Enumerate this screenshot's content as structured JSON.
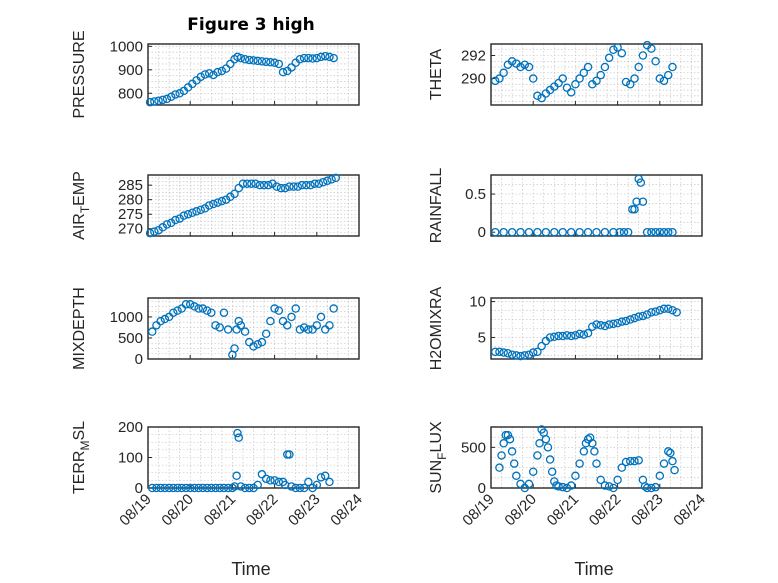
{
  "title": "Figure 3 high",
  "colors": {
    "marker": "#0072bd",
    "axis": "#262626",
    "grid": "#bdbdbd"
  },
  "time_ticks": [
    "08/19",
    "08/20",
    "08/21",
    "08/22",
    "08/23",
    "08/24"
  ],
  "xlabel": "Time",
  "chart_data": [
    {
      "type": "scatter",
      "ylabel": "PRESSURE",
      "ylabel_sub": "",
      "ylabel_rest": "",
      "xlim": [
        0,
        5
      ],
      "ylim": [
        750,
        1010
      ],
      "yticks": [
        800,
        900,
        1000
      ],
      "ytick_labels": [
        "800",
        "900",
        "1000"
      ],
      "grid": true,
      "x": [
        0.05,
        0.15,
        0.25,
        0.35,
        0.45,
        0.55,
        0.65,
        0.75,
        0.85,
        0.95,
        1.05,
        1.15,
        1.25,
        1.35,
        1.45,
        1.55,
        1.65,
        1.75,
        1.85,
        1.95,
        2.05,
        2.12,
        2.2,
        2.3,
        2.4,
        2.5,
        2.6,
        2.7,
        2.8,
        2.9,
        3.0,
        3.1,
        3.2,
        3.3,
        3.4,
        3.5,
        3.6,
        3.7,
        3.8,
        3.9,
        4.0,
        4.1,
        4.2,
        4.3,
        4.4
      ],
      "y": [
        762,
        765,
        768,
        772,
        776,
        785,
        795,
        800,
        810,
        825,
        840,
        855,
        870,
        880,
        885,
        878,
        890,
        895,
        905,
        925,
        945,
        955,
        950,
        945,
        942,
        940,
        938,
        936,
        934,
        932,
        930,
        925,
        890,
        895,
        910,
        930,
        945,
        950,
        950,
        948,
        950,
        955,
        958,
        955,
        950
      ]
    },
    {
      "type": "scatter",
      "ylabel": "THETA",
      "ylabel_sub": "",
      "ylabel_rest": "",
      "xlim": [
        0,
        5
      ],
      "ylim": [
        287.7,
        293.0
      ],
      "yticks": [
        290,
        292
      ],
      "ytick_labels": [
        "290",
        "292"
      ],
      "grid": true,
      "x": [
        0.1,
        0.2,
        0.3,
        0.4,
        0.5,
        0.6,
        0.7,
        0.8,
        0.9,
        1.0,
        1.1,
        1.2,
        1.3,
        1.4,
        1.5,
        1.6,
        1.7,
        1.8,
        1.9,
        2.0,
        2.1,
        2.2,
        2.3,
        2.4,
        2.5,
        2.6,
        2.7,
        2.8,
        2.9,
        3.0,
        3.1,
        3.2,
        3.3,
        3.4,
        3.5,
        3.6,
        3.7,
        3.8,
        3.9,
        4.0,
        4.1,
        4.2,
        4.3
      ],
      "y": [
        289.8,
        290.0,
        290.5,
        291.2,
        291.5,
        291.3,
        291.0,
        291.2,
        291.0,
        290.0,
        288.5,
        288.3,
        288.7,
        289.0,
        289.3,
        289.6,
        290.0,
        289.2,
        288.8,
        289.5,
        290.0,
        290.5,
        291.0,
        289.5,
        289.8,
        290.3,
        291.0,
        291.8,
        292.5,
        292.7,
        292.2,
        289.7,
        289.5,
        290.0,
        291.0,
        292.0,
        292.9,
        292.6,
        291.5,
        290.0,
        289.8,
        290.3,
        291.0
      ]
    },
    {
      "type": "scatter",
      "ylabel": "AIR",
      "ylabel_sub": "T",
      "ylabel_rest": "EMP",
      "xlim": [
        0,
        5
      ],
      "ylim": [
        267.5,
        288.5
      ],
      "yticks": [
        270,
        275,
        280,
        285
      ],
      "ytick_labels": [
        "270",
        "275",
        "280",
        "285"
      ],
      "grid": true,
      "x": [
        0.05,
        0.15,
        0.25,
        0.35,
        0.45,
        0.55,
        0.65,
        0.75,
        0.85,
        0.95,
        1.05,
        1.15,
        1.25,
        1.35,
        1.45,
        1.55,
        1.65,
        1.75,
        1.85,
        1.95,
        2.05,
        2.15,
        2.25,
        2.35,
        2.45,
        2.55,
        2.65,
        2.75,
        2.85,
        2.95,
        3.05,
        3.15,
        3.25,
        3.35,
        3.45,
        3.55,
        3.65,
        3.75,
        3.85,
        3.95,
        4.05,
        4.15,
        4.25,
        4.35,
        4.45
      ],
      "y": [
        268.5,
        269,
        269.5,
        270.5,
        271.5,
        272,
        273,
        273.5,
        274.5,
        275,
        275.5,
        276,
        276.5,
        277,
        278,
        278.5,
        279,
        279.5,
        280,
        281,
        282,
        284,
        285.5,
        285.5,
        285.5,
        285.5,
        285,
        285,
        285,
        285.5,
        284.5,
        284,
        284,
        284.5,
        284.5,
        284.5,
        285,
        285,
        285,
        285.5,
        285.5,
        286,
        286.5,
        287,
        287.5
      ]
    },
    {
      "type": "scatter",
      "ylabel": "RAINFALL",
      "ylabel_sub": "",
      "ylabel_rest": "",
      "xlim": [
        0,
        5
      ],
      "ylim": [
        -0.05,
        0.75
      ],
      "yticks": [
        0,
        0.5
      ],
      "ytick_labels": [
        "0",
        "0.5"
      ],
      "grid": true,
      "x": [
        0.1,
        0.3,
        0.5,
        0.7,
        0.9,
        1.1,
        1.3,
        1.5,
        1.7,
        1.9,
        2.1,
        2.3,
        2.5,
        2.7,
        2.9,
        3.05,
        3.15,
        3.25,
        3.35,
        3.4,
        3.45,
        3.5,
        3.55,
        3.6,
        3.7,
        3.8,
        3.9,
        4.0,
        4.1,
        4.2,
        4.3
      ],
      "y": [
        0,
        0,
        0,
        0,
        0,
        0,
        0,
        0,
        0,
        0,
        0,
        0,
        0,
        0,
        0,
        0,
        0,
        0,
        0.3,
        0.3,
        0.4,
        0.7,
        0.65,
        0.4,
        0,
        0,
        0,
        0,
        0,
        0,
        0
      ]
    },
    {
      "type": "scatter",
      "ylabel": "MIXDEPTH",
      "ylabel_sub": "",
      "ylabel_rest": "",
      "xlim": [
        0,
        5
      ],
      "ylim": [
        0,
        1450
      ],
      "yticks": [
        0,
        500,
        1000
      ],
      "ytick_labels": [
        "0",
        "500",
        "1000"
      ],
      "grid": true,
      "x": [
        0.1,
        0.2,
        0.3,
        0.4,
        0.5,
        0.6,
        0.7,
        0.8,
        0.9,
        1.0,
        1.1,
        1.2,
        1.3,
        1.4,
        1.5,
        1.6,
        1.7,
        1.8,
        1.9,
        2.0,
        2.05,
        2.1,
        2.15,
        2.2,
        2.3,
        2.4,
        2.5,
        2.6,
        2.7,
        2.8,
        2.9,
        3.0,
        3.1,
        3.2,
        3.3,
        3.4,
        3.5,
        3.6,
        3.7,
        3.8,
        3.9,
        4.0,
        4.1,
        4.2,
        4.3,
        4.4
      ],
      "y": [
        650,
        800,
        900,
        950,
        1000,
        1100,
        1150,
        1200,
        1300,
        1300,
        1250,
        1200,
        1200,
        1150,
        1100,
        800,
        750,
        1100,
        700,
        100,
        250,
        700,
        900,
        800,
        650,
        400,
        300,
        350,
        400,
        600,
        900,
        1200,
        1150,
        900,
        800,
        1000,
        1200,
        700,
        750,
        700,
        700,
        800,
        1000,
        700,
        800,
        1200
      ]
    },
    {
      "type": "scatter",
      "ylabel": "H2OMIXRA",
      "ylabel_sub": "",
      "ylabel_rest": "",
      "xlim": [
        0,
        5
      ],
      "ylim": [
        2,
        10.5
      ],
      "yticks": [
        5,
        10
      ],
      "ytick_labels": [
        "5",
        "10"
      ],
      "grid": true,
      "x": [
        0.1,
        0.2,
        0.3,
        0.4,
        0.5,
        0.6,
        0.7,
        0.8,
        0.9,
        1.0,
        1.1,
        1.2,
        1.3,
        1.4,
        1.5,
        1.6,
        1.7,
        1.8,
        1.9,
        2.0,
        2.1,
        2.2,
        2.3,
        2.4,
        2.5,
        2.6,
        2.7,
        2.8,
        2.9,
        3.0,
        3.1,
        3.2,
        3.3,
        3.4,
        3.5,
        3.6,
        3.7,
        3.8,
        3.9,
        4.0,
        4.1,
        4.2,
        4.3,
        4.4
      ],
      "y": [
        3,
        3,
        2.9,
        2.8,
        2.6,
        2.5,
        2.4,
        2.5,
        2.6,
        2.9,
        3.0,
        3.8,
        4.5,
        5.0,
        5.1,
        5.2,
        5.2,
        5.3,
        5.2,
        5.3,
        5.5,
        5.4,
        5.6,
        6.5,
        6.8,
        6.7,
        6.6,
        6.8,
        6.9,
        7.0,
        7.2,
        7.3,
        7.5,
        7.7,
        7.9,
        8.0,
        8.2,
        8.5,
        8.6,
        8.8,
        9.0,
        9.0,
        8.8,
        8.5
      ]
    },
    {
      "type": "scatter",
      "ylabel": "TERR",
      "ylabel_sub": "M",
      "ylabel_rest": "SL",
      "xlim": [
        0,
        5
      ],
      "ylim": [
        0,
        200
      ],
      "yticks": [
        0,
        100,
        200
      ],
      "ytick_labels": [
        "0",
        "100",
        "200"
      ],
      "grid": true,
      "x": [
        0.1,
        0.2,
        0.3,
        0.4,
        0.5,
        0.6,
        0.7,
        0.8,
        0.9,
        1.0,
        1.1,
        1.2,
        1.3,
        1.4,
        1.5,
        1.6,
        1.7,
        1.8,
        1.9,
        2.0,
        2.05,
        2.1,
        2.12,
        2.15,
        2.2,
        2.3,
        2.4,
        2.5,
        2.6,
        2.7,
        2.8,
        2.9,
        3.0,
        3.1,
        3.2,
        3.25,
        3.3,
        3.35,
        3.4,
        3.5,
        3.6,
        3.7,
        3.8,
        3.9,
        4.0,
        4.1,
        4.2,
        4.3
      ],
      "y": [
        0,
        0,
        0,
        0,
        0,
        0,
        0,
        0,
        0,
        0,
        0,
        0,
        0,
        0,
        0,
        0,
        0,
        0,
        0,
        0,
        5,
        40,
        180,
        165,
        5,
        0,
        0,
        0,
        10,
        45,
        30,
        25,
        25,
        20,
        20,
        10,
        110,
        110,
        5,
        0,
        0,
        0,
        20,
        0,
        10,
        35,
        40,
        20
      ]
    },
    {
      "type": "scatter",
      "ylabel": "SUN",
      "ylabel_sub": "F",
      "ylabel_rest": "LUX",
      "xlim": [
        0,
        5
      ],
      "ylim": [
        0,
        750
      ],
      "yticks": [
        0,
        500
      ],
      "ytick_labels": [
        "0",
        "500"
      ],
      "grid": true,
      "x": [
        0.2,
        0.25,
        0.3,
        0.35,
        0.4,
        0.45,
        0.5,
        0.55,
        0.6,
        0.7,
        0.8,
        0.9,
        1.0,
        1.1,
        1.15,
        1.2,
        1.25,
        1.3,
        1.35,
        1.4,
        1.45,
        1.5,
        1.55,
        1.6,
        1.7,
        1.8,
        1.9,
        2.0,
        2.1,
        2.2,
        2.25,
        2.3,
        2.35,
        2.4,
        2.45,
        2.5,
        2.6,
        2.7,
        2.8,
        2.9,
        3.0,
        3.1,
        3.2,
        3.3,
        3.4,
        3.5,
        3.6,
        3.65,
        3.7,
        3.8,
        3.9,
        4.0,
        4.1,
        4.2,
        4.25,
        4.3,
        4.35
      ],
      "y": [
        250,
        400,
        550,
        650,
        650,
        600,
        450,
        300,
        150,
        50,
        0,
        50,
        200,
        400,
        550,
        720,
        680,
        600,
        500,
        350,
        200,
        80,
        30,
        20,
        10,
        0,
        30,
        150,
        300,
        450,
        550,
        600,
        620,
        550,
        450,
        300,
        100,
        30,
        20,
        0,
        100,
        250,
        320,
        330,
        330,
        340,
        100,
        20,
        0,
        0,
        10,
        150,
        300,
        450,
        430,
        330,
        220
      ]
    }
  ]
}
